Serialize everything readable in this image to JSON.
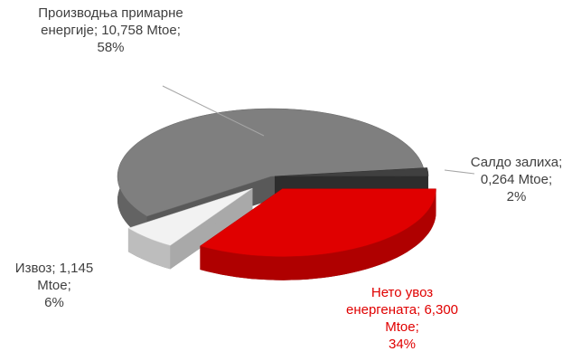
{
  "chart_data": {
    "type": "pie",
    "categories": [
      "Салдо залиха",
      "Нето увоз енергената",
      "Извоз",
      "Производња примарне енергије"
    ],
    "values": [
      2,
      34,
      6,
      58
    ],
    "value_labels": [
      "2%",
      "34%",
      "6%",
      "58%"
    ],
    "amounts": [
      0.264,
      6.3,
      1.145,
      10.758
    ],
    "amount_labels": [
      "0,264 Mtoe",
      "6,300 Mtoe",
      "1,145 Mtoe",
      "10,758 Mtoe"
    ],
    "label_separator": ";",
    "colors": [
      "#404040",
      "#e00000",
      "#f2f2f2",
      "#7f7f7f"
    ],
    "label_colors": [
      "#404040",
      "#e00000",
      "#404040",
      "#404040"
    ]
  }
}
